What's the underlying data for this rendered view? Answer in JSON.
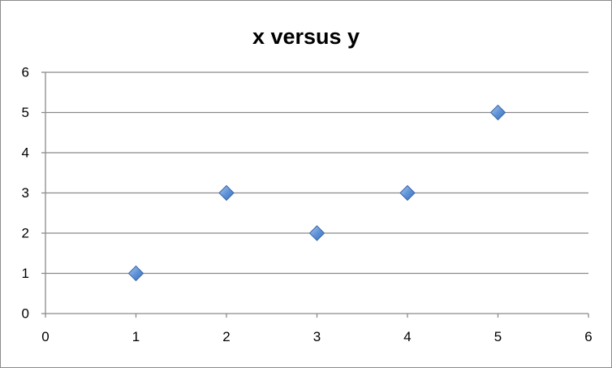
{
  "chart_data": {
    "type": "scatter",
    "title": "x versus y",
    "xlabel": "",
    "ylabel": "",
    "xlim": [
      0,
      6
    ],
    "ylim": [
      0,
      6
    ],
    "xticks": [
      0,
      1,
      2,
      3,
      4,
      5,
      6
    ],
    "yticks": [
      0,
      1,
      2,
      3,
      4,
      5,
      6
    ],
    "grid": "horizontal",
    "legend": "none",
    "marker": "diamond",
    "series": [
      {
        "color": "#5b8fd6",
        "points": [
          {
            "x": 1,
            "y": 1
          },
          {
            "x": 2,
            "y": 3
          },
          {
            "x": 3,
            "y": 2
          },
          {
            "x": 4,
            "y": 3
          },
          {
            "x": 5,
            "y": 5
          }
        ]
      }
    ]
  }
}
